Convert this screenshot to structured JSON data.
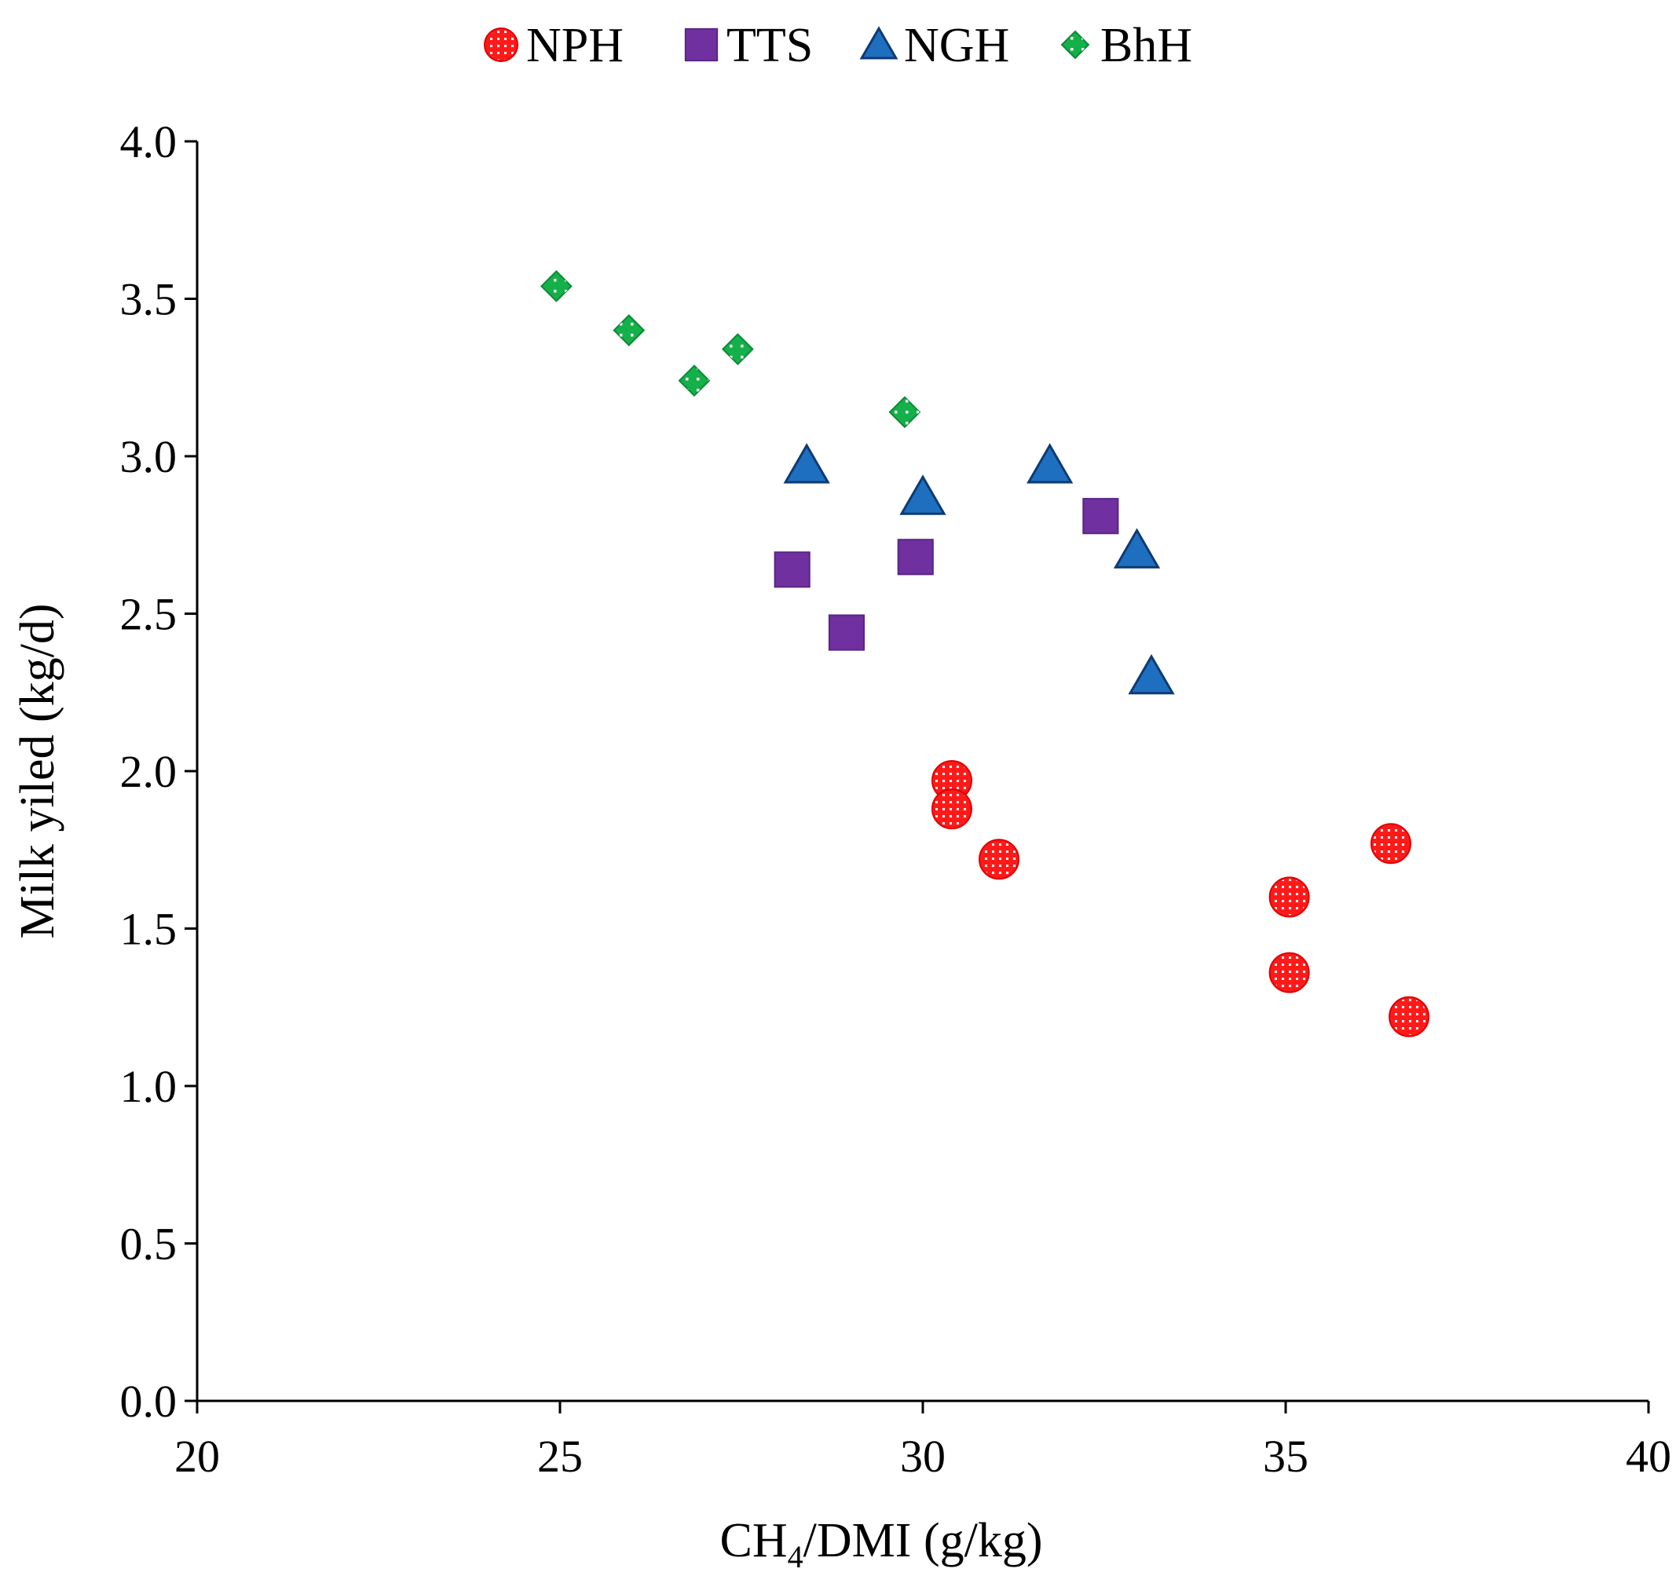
{
  "chart_data": {
    "type": "scatter",
    "title": "",
    "xlabel": {
      "main": "CH",
      "subscript": "4",
      "rest": "/DMI (g/kg)"
    },
    "ylabel": "Milk yiled (kg/d)",
    "xlim": [
      20,
      40
    ],
    "ylim": [
      0.0,
      4.0
    ],
    "x_ticks": [
      "20",
      "25",
      "30",
      "35",
      "40"
    ],
    "x_tick_values": [
      20,
      25,
      30,
      35,
      40
    ],
    "y_ticks": [
      "0.0",
      "0.5",
      "1.0",
      "1.5",
      "2.0",
      "2.5",
      "3.0",
      "3.5",
      "4.0"
    ],
    "y_tick_values": [
      0,
      0.5,
      1.0,
      1.5,
      2.0,
      2.5,
      3.0,
      3.5,
      4.0
    ],
    "grid": false,
    "legend_position": "top-center",
    "series": [
      {
        "name": "NPH",
        "marker": "circle",
        "color": "#ff1a1a",
        "points": [
          {
            "x": 30.4,
            "y": 1.97
          },
          {
            "x": 30.4,
            "y": 1.88
          },
          {
            "x": 31.05,
            "y": 1.72
          },
          {
            "x": 35.05,
            "y": 1.6
          },
          {
            "x": 35.05,
            "y": 1.36
          },
          {
            "x": 36.45,
            "y": 1.77
          },
          {
            "x": 36.7,
            "y": 1.22
          }
        ]
      },
      {
        "name": "TTS",
        "marker": "square",
        "color": "#7030a0",
        "points": [
          {
            "x": 28.2,
            "y": 2.64
          },
          {
            "x": 28.95,
            "y": 2.44
          },
          {
            "x": 29.9,
            "y": 2.68
          },
          {
            "x": 32.45,
            "y": 2.81
          }
        ]
      },
      {
        "name": "NGH",
        "marker": "triangle",
        "color": "#1f6fc0",
        "points": [
          {
            "x": 28.4,
            "y": 2.97
          },
          {
            "x": 30.0,
            "y": 2.87
          },
          {
            "x": 31.75,
            "y": 2.97
          },
          {
            "x": 32.95,
            "y": 2.7
          },
          {
            "x": 33.15,
            "y": 2.3
          }
        ]
      },
      {
        "name": "BhH",
        "marker": "diamond",
        "color": "#14b04a",
        "points": [
          {
            "x": 24.95,
            "y": 3.54
          },
          {
            "x": 25.95,
            "y": 3.4
          },
          {
            "x": 26.85,
            "y": 3.24
          },
          {
            "x": 27.45,
            "y": 3.34
          },
          {
            "x": 29.75,
            "y": 3.14
          }
        ]
      }
    ]
  }
}
